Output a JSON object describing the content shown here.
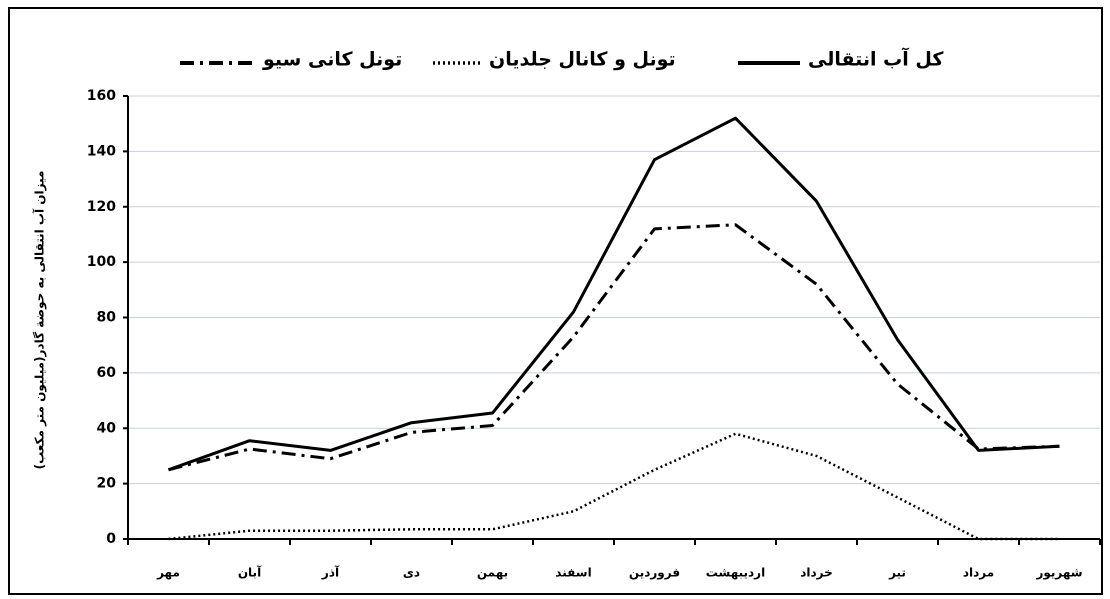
{
  "chart_data": {
    "type": "line",
    "y_label": "میزان آب انتقالی به حوضة گادر(میلیون متر مکعب)",
    "categories": [
      "مهر",
      "آبان",
      "آذر",
      "دی",
      "بهمن",
      "اسفند",
      "فروردین",
      "اردیبهشت",
      "خرداد",
      "تیر",
      "مرداد",
      "شهریور"
    ],
    "series": [
      {
        "name": "کل آب انتقالی",
        "color": "#000000",
        "style": "solid",
        "values": [
          25,
          35.5,
          32,
          42,
          45.5,
          82,
          137,
          152,
          122,
          72,
          32,
          33.5
        ]
      },
      {
        "name": "تونل و کانال جلدیان",
        "color": "#000000",
        "style": "dotted",
        "values": [
          0,
          3,
          3,
          3.5,
          3.5,
          10,
          25,
          38,
          30,
          15,
          0,
          0
        ]
      },
      {
        "name": "تونل کانی سیو",
        "color": "#000000",
        "style": "dashdot",
        "values": [
          25,
          32.5,
          29,
          38.5,
          41,
          73,
          112,
          113.5,
          92,
          56,
          32.5,
          33.5
        ]
      }
    ],
    "ylim": [
      0,
      160
    ],
    "yticks": [
      0,
      20,
      40,
      60,
      80,
      100,
      120,
      140,
      160
    ],
    "grid": true
  }
}
